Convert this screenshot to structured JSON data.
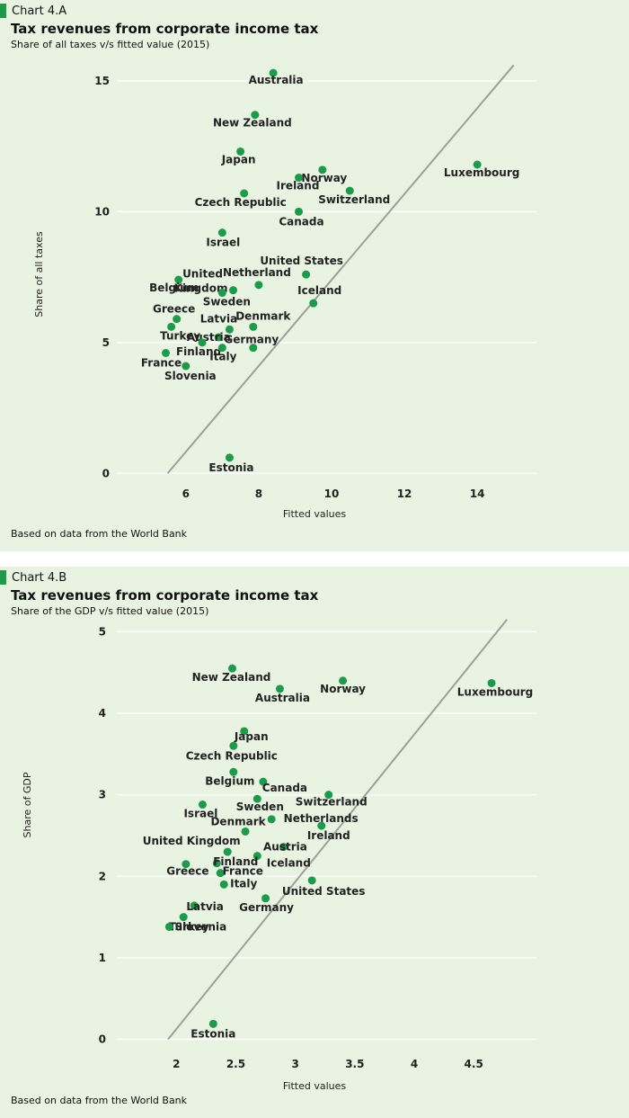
{
  "charts": [
    {
      "tag": "Chart 4.A",
      "footer": "Based on data from the World Bank",
      "chart_data": {
        "type": "scatter",
        "title": "Tax revenues from corporate income tax",
        "subtitle": "Share of all taxes v/s fitted value (2015)",
        "xlabel": "Fitted values",
        "ylabel": "Share of all taxes",
        "xlim": [
          4.5,
          15.6
        ],
        "ylim": [
          -0.3,
          16.2
        ],
        "xticks": [
          6,
          8,
          10,
          12,
          14
        ],
        "yticks": [
          0,
          5,
          10,
          15
        ],
        "grid": "horizontal",
        "point_color": "#1f9a4a",
        "line_color": "#9aa09a",
        "fit_line": [
          [
            5.5,
            0.0
          ],
          [
            15.0,
            15.6
          ]
        ],
        "points": [
          {
            "label": "Australia",
            "x": 8.4,
            "y": 15.3
          },
          {
            "label": "New Zealand",
            "x": 7.9,
            "y": 13.7
          },
          {
            "label": "Japan",
            "x": 7.5,
            "y": 12.3
          },
          {
            "label": "Norway",
            "x": 9.75,
            "y": 11.6
          },
          {
            "label": "Ireland",
            "x": 9.1,
            "y": 11.3
          },
          {
            "label": "Luxembourg",
            "x": 14.0,
            "y": 11.8
          },
          {
            "label": "Switzerland",
            "x": 10.5,
            "y": 10.8
          },
          {
            "label": "Czech Republic",
            "x": 7.6,
            "y": 10.7
          },
          {
            "label": "Canada",
            "x": 9.1,
            "y": 10.0
          },
          {
            "label": "Israel",
            "x": 7.0,
            "y": 9.2
          },
          {
            "label": "United Kingdom",
            "x": 7.3,
            "y": 7.0
          },
          {
            "label": "Netherland",
            "x": 8.0,
            "y": 7.2
          },
          {
            "label": "United States",
            "x": 9.3,
            "y": 7.6
          },
          {
            "label": "Belgium",
            "x": 5.8,
            "y": 7.4
          },
          {
            "label": "Sweden",
            "x": 7.0,
            "y": 6.9
          },
          {
            "label": "Iceland",
            "x": 9.5,
            "y": 6.5
          },
          {
            "label": "Greece",
            "x": 5.75,
            "y": 5.9
          },
          {
            "label": "Denmark",
            "x": 7.85,
            "y": 5.6
          },
          {
            "label": "Turkey",
            "x": 5.6,
            "y": 5.6
          },
          {
            "label": "Latvia",
            "x": 7.2,
            "y": 5.5
          },
          {
            "label": "Austria",
            "x": 6.9,
            "y": 5.2
          },
          {
            "label": "Finland",
            "x": 6.45,
            "y": 5.0
          },
          {
            "label": "Germany",
            "x": 7.85,
            "y": 4.8
          },
          {
            "label": "Italy",
            "x": 7.0,
            "y": 4.8
          },
          {
            "label": "France",
            "x": 5.45,
            "y": 4.6
          },
          {
            "label": "Slovenia",
            "x": 6.0,
            "y": 4.1
          },
          {
            "label": "Estonia",
            "x": 7.2,
            "y": 0.6
          }
        ]
      }
    },
    {
      "tag": "Chart 4.B",
      "footer": "Based on data from the World Bank",
      "chart_data": {
        "type": "scatter",
        "title": "Tax revenues from corporate income tax",
        "subtitle": "Share of the GDP v/s fitted value (2015)",
        "xlabel": "Fitted values",
        "ylabel": "Share of GDP",
        "xlim": [
          1.62,
          5.02
        ],
        "ylim": [
          -0.06,
          5.28
        ],
        "xticks": [
          2,
          2.5,
          3,
          3.5,
          4,
          4.5
        ],
        "yticks": [
          0,
          1,
          2,
          3,
          4,
          5
        ],
        "grid": "horizontal",
        "point_color": "#1f9a4a",
        "line_color": "#9aa09a",
        "fit_line": [
          [
            1.93,
            0.0
          ],
          [
            4.78,
            5.15
          ]
        ],
        "points": [
          {
            "label": "New Zealand",
            "x": 2.47,
            "y": 4.55
          },
          {
            "label": "Australia",
            "x": 2.87,
            "y": 4.3
          },
          {
            "label": "Norway",
            "x": 3.4,
            "y": 4.4
          },
          {
            "label": "Luxembourg",
            "x": 4.65,
            "y": 4.37
          },
          {
            "label": "Japan",
            "x": 2.57,
            "y": 3.78
          },
          {
            "label": "Czech Republic",
            "x": 2.48,
            "y": 3.6
          },
          {
            "label": "Belgium",
            "x": 2.48,
            "y": 3.28
          },
          {
            "label": "Canada",
            "x": 2.73,
            "y": 3.16
          },
          {
            "label": "Switzerland",
            "x": 3.28,
            "y": 3.0
          },
          {
            "label": "Sweden",
            "x": 2.68,
            "y": 2.95
          },
          {
            "label": "Israel",
            "x": 2.22,
            "y": 2.88
          },
          {
            "label": "Netherlands",
            "x": 2.8,
            "y": 2.7
          },
          {
            "label": "Ireland",
            "x": 3.22,
            "y": 2.62
          },
          {
            "label": "Denmark",
            "x": 2.58,
            "y": 2.55
          },
          {
            "label": "Austria",
            "x": 2.9,
            "y": 2.36
          },
          {
            "label": "United Kingdom",
            "x": 2.43,
            "y": 2.3
          },
          {
            "label": "Iceland",
            "x": 2.68,
            "y": 2.25
          },
          {
            "label": "Greece",
            "x": 2.08,
            "y": 2.15
          },
          {
            "label": "Finland",
            "x": 2.34,
            "y": 2.16
          },
          {
            "label": "France",
            "x": 2.37,
            "y": 2.04
          },
          {
            "label": "United States",
            "x": 3.14,
            "y": 1.95
          },
          {
            "label": "Italy",
            "x": 2.4,
            "y": 1.9
          },
          {
            "label": "Germany",
            "x": 2.75,
            "y": 1.73
          },
          {
            "label": "Latvia",
            "x": 2.15,
            "y": 1.64
          },
          {
            "label": "Turkey",
            "x": 2.06,
            "y": 1.5
          },
          {
            "label": "Slovenia",
            "x": 1.94,
            "y": 1.38
          },
          {
            "label": "Estonia",
            "x": 2.31,
            "y": 0.19
          }
        ]
      }
    }
  ]
}
